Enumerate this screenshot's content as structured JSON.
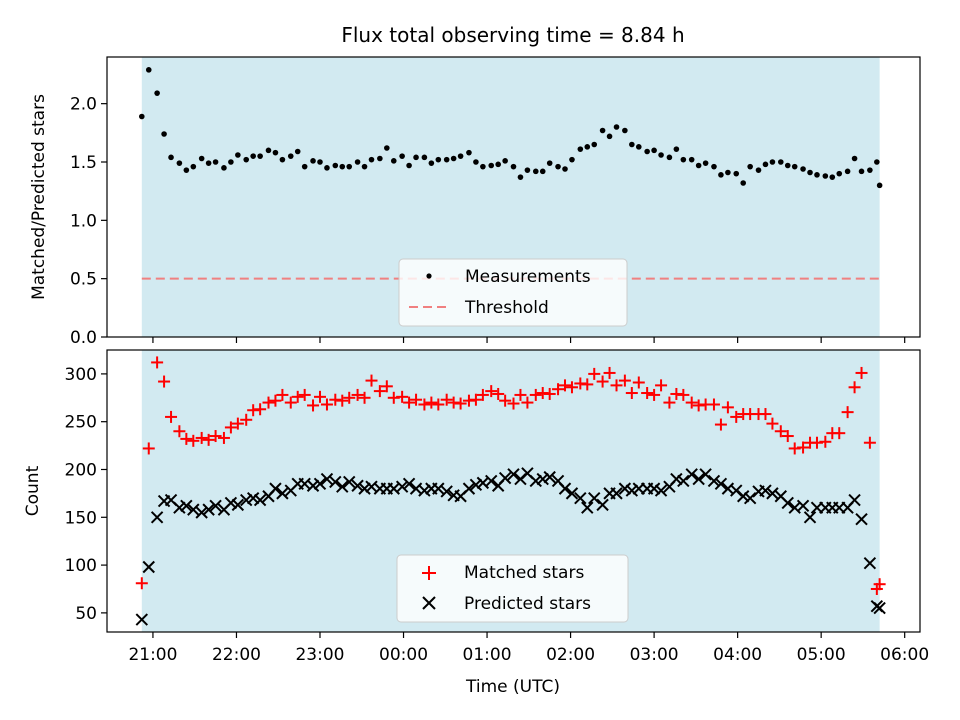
{
  "chart_data": [
    {
      "type": "scatter",
      "title": "Flux total observing time = 8.84 h",
      "ylabel": "Matched/Predicted stars",
      "xlabel": "",
      "ylim": [
        0,
        2.4
      ],
      "yticks": [
        0.0,
        0.5,
        1.0,
        1.5,
        2.0
      ],
      "ytick_labels": [
        "0.0",
        "0.5",
        "1.0",
        "1.5",
        "2.0"
      ],
      "shaded_band": {
        "from": "20:52",
        "to": "05:42",
        "color": "#add8e6"
      },
      "threshold": 0.5,
      "legend": {
        "placement": "lower-center",
        "entries": [
          "Measurements",
          "Threshold"
        ]
      },
      "series": [
        {
          "name": "Measurements",
          "color": "#000000",
          "x": [
            "20:52",
            "20:57",
            "21:03",
            "21:08",
            "21:13",
            "21:19",
            "21:24",
            "21:29",
            "21:35",
            "21:40",
            "21:45",
            "21:51",
            "21:56",
            "22:01",
            "22:07",
            "22:12",
            "22:17",
            "22:23",
            "22:28",
            "22:33",
            "22:39",
            "22:44",
            "22:49",
            "22:55",
            "23:00",
            "23:05",
            "23:11",
            "23:16",
            "23:21",
            "23:27",
            "23:32",
            "23:37",
            "23:43",
            "23:48",
            "23:53",
            "23:59",
            "00:04",
            "00:09",
            "00:15",
            "00:20",
            "00:25",
            "00:31",
            "00:36",
            "00:41",
            "00:47",
            "00:52",
            "00:57",
            "01:03",
            "01:08",
            "01:13",
            "01:19",
            "01:24",
            "01:29",
            "01:35",
            "01:40",
            "01:45",
            "01:51",
            "01:56",
            "02:01",
            "02:07",
            "02:12",
            "02:17",
            "02:23",
            "02:28",
            "02:33",
            "02:39",
            "02:44",
            "02:49",
            "02:55",
            "03:00",
            "03:05",
            "03:11",
            "03:16",
            "03:21",
            "03:27",
            "03:32",
            "03:37",
            "03:43",
            "03:48",
            "03:53",
            "03:59",
            "04:04",
            "04:09",
            "04:15",
            "04:20",
            "04:25",
            "04:31",
            "04:36",
            "04:41",
            "04:47",
            "04:52",
            "04:57",
            "05:03",
            "05:08",
            "05:13",
            "05:19",
            "05:24",
            "05:29",
            "05:35",
            "05:40",
            "05:42"
          ],
          "y": [
            1.89,
            2.29,
            2.09,
            1.74,
            1.54,
            1.49,
            1.43,
            1.46,
            1.53,
            1.49,
            1.5,
            1.45,
            1.5,
            1.56,
            1.52,
            1.55,
            1.55,
            1.6,
            1.58,
            1.52,
            1.55,
            1.59,
            1.46,
            1.51,
            1.5,
            1.45,
            1.47,
            1.46,
            1.46,
            1.5,
            1.46,
            1.52,
            1.53,
            1.62,
            1.51,
            1.55,
            1.47,
            1.54,
            1.54,
            1.49,
            1.52,
            1.52,
            1.53,
            1.55,
            1.58,
            1.5,
            1.46,
            1.47,
            1.48,
            1.51,
            1.46,
            1.37,
            1.43,
            1.42,
            1.42,
            1.49,
            1.46,
            1.44,
            1.52,
            1.61,
            1.63,
            1.65,
            1.77,
            1.72,
            1.8,
            1.77,
            1.65,
            1.63,
            1.59,
            1.6,
            1.56,
            1.54,
            1.61,
            1.52,
            1.52,
            1.47,
            1.49,
            1.46,
            1.39,
            1.41,
            1.4,
            1.32,
            1.46,
            1.43,
            1.48,
            1.5,
            1.5,
            1.47,
            1.46,
            1.44,
            1.41,
            1.39,
            1.38,
            1.37,
            1.4,
            1.42,
            1.53,
            1.42,
            1.43,
            1.5,
            1.3
          ]
        },
        {
          "name": "Threshold",
          "color": "#f08080",
          "style": "dashed",
          "x": [
            "20:52",
            "05:42"
          ],
          "y": [
            0.5,
            0.5
          ]
        }
      ]
    },
    {
      "type": "scatter",
      "title": "",
      "xlabel": "Time (UTC)",
      "ylabel": "Count",
      "ylim": [
        30,
        325
      ],
      "yticks": [
        50,
        100,
        150,
        200,
        250,
        300
      ],
      "ytick_labels": [
        "50",
        "100",
        "150",
        "200",
        "250",
        "300"
      ],
      "xlim": [
        "20:27",
        "06:11"
      ],
      "xticks": [
        "21:00",
        "22:00",
        "23:00",
        "00:00",
        "01:00",
        "02:00",
        "03:00",
        "04:00",
        "05:00",
        "06:00"
      ],
      "xtick_labels": [
        "21:00",
        "22:00",
        "23:00",
        "00:00",
        "01:00",
        "02:00",
        "03:00",
        "04:00",
        "05:00",
        "06:00"
      ],
      "shaded_band": {
        "from": "20:52",
        "to": "05:42",
        "color": "#add8e6"
      },
      "legend": {
        "placement": "lower-center",
        "entries": [
          "Matched stars",
          "Predicted stars"
        ]
      },
      "series": [
        {
          "name": "Matched stars",
          "color": "#ff0000",
          "marker": "plus",
          "x": [
            "20:52",
            "20:57",
            "21:03",
            "21:08",
            "21:13",
            "21:19",
            "21:24",
            "21:29",
            "21:35",
            "21:40",
            "21:45",
            "21:51",
            "21:56",
            "22:01",
            "22:07",
            "22:12",
            "22:17",
            "22:23",
            "22:28",
            "22:33",
            "22:39",
            "22:44",
            "22:49",
            "22:55",
            "23:00",
            "23:05",
            "23:11",
            "23:16",
            "23:21",
            "23:27",
            "23:32",
            "23:37",
            "23:43",
            "23:48",
            "23:53",
            "23:59",
            "00:04",
            "00:09",
            "00:15",
            "00:20",
            "00:25",
            "00:31",
            "00:36",
            "00:41",
            "00:47",
            "00:52",
            "00:57",
            "01:03",
            "01:08",
            "01:13",
            "01:19",
            "01:24",
            "01:29",
            "01:35",
            "01:40",
            "01:45",
            "01:51",
            "01:56",
            "02:01",
            "02:07",
            "02:12",
            "02:17",
            "02:23",
            "02:28",
            "02:33",
            "02:39",
            "02:44",
            "02:49",
            "02:55",
            "03:00",
            "03:05",
            "03:11",
            "03:16",
            "03:21",
            "03:27",
            "03:32",
            "03:37",
            "03:43",
            "03:48",
            "03:53",
            "03:59",
            "04:04",
            "04:09",
            "04:15",
            "04:20",
            "04:25",
            "04:31",
            "04:36",
            "04:41",
            "04:47",
            "04:52",
            "04:57",
            "05:03",
            "05:08",
            "05:13",
            "05:19",
            "05:24",
            "05:29",
            "05:35",
            "05:40",
            "05:42"
          ],
          "y": [
            81,
            222,
            312,
            292,
            255,
            240,
            232,
            230,
            233,
            231,
            235,
            233,
            244,
            248,
            252,
            262,
            263,
            270,
            272,
            278,
            270,
            276,
            278,
            267,
            276,
            268,
            273,
            272,
            275,
            278,
            275,
            293,
            282,
            287,
            275,
            276,
            270,
            273,
            268,
            270,
            268,
            273,
            270,
            269,
            272,
            273,
            278,
            282,
            279,
            272,
            269,
            278,
            270,
            278,
            280,
            279,
            284,
            288,
            286,
            290,
            289,
            300,
            292,
            301,
            288,
            293,
            280,
            291,
            280,
            278,
            288,
            270,
            279,
            278,
            270,
            267,
            268,
            268,
            247,
            265,
            255,
            258,
            258,
            258,
            258,
            248,
            240,
            235,
            222,
            223,
            228,
            228,
            229,
            238,
            238,
            260,
            286,
            301,
            228,
            75,
            80
          ]
        },
        {
          "name": "Predicted stars",
          "color": "#000000",
          "marker": "x",
          "x": [
            "20:52",
            "20:57",
            "21:03",
            "21:08",
            "21:13",
            "21:19",
            "21:24",
            "21:29",
            "21:35",
            "21:40",
            "21:45",
            "21:51",
            "21:56",
            "22:01",
            "22:07",
            "22:12",
            "22:17",
            "22:23",
            "22:28",
            "22:33",
            "22:39",
            "22:44",
            "22:49",
            "22:55",
            "23:00",
            "23:05",
            "23:11",
            "23:16",
            "23:21",
            "23:27",
            "23:32",
            "23:37",
            "23:43",
            "23:48",
            "23:53",
            "23:59",
            "00:04",
            "00:09",
            "00:15",
            "00:20",
            "00:25",
            "00:31",
            "00:36",
            "00:41",
            "00:47",
            "00:52",
            "00:57",
            "01:03",
            "01:08",
            "01:13",
            "01:19",
            "01:24",
            "01:29",
            "01:35",
            "01:40",
            "01:45",
            "01:51",
            "01:56",
            "02:01",
            "02:07",
            "02:12",
            "02:17",
            "02:23",
            "02:28",
            "02:33",
            "02:39",
            "02:44",
            "02:49",
            "02:55",
            "03:00",
            "03:05",
            "03:11",
            "03:16",
            "03:21",
            "03:27",
            "03:32",
            "03:37",
            "03:43",
            "03:48",
            "03:53",
            "03:59",
            "04:04",
            "04:09",
            "04:15",
            "04:20",
            "04:25",
            "04:31",
            "04:36",
            "04:41",
            "04:47",
            "04:52",
            "04:57",
            "05:03",
            "05:08",
            "05:13",
            "05:19",
            "05:24",
            "05:29",
            "05:35",
            "05:40",
            "05:42"
          ],
          "y": [
            43,
            98,
            150,
            167,
            168,
            160,
            162,
            158,
            155,
            158,
            162,
            158,
            165,
            163,
            168,
            170,
            168,
            172,
            180,
            175,
            178,
            185,
            185,
            183,
            185,
            190,
            187,
            182,
            187,
            183,
            180,
            182,
            180,
            180,
            180,
            182,
            185,
            180,
            178,
            180,
            180,
            177,
            173,
            172,
            180,
            184,
            186,
            188,
            183,
            191,
            195,
            190,
            196,
            188,
            190,
            192,
            188,
            180,
            175,
            170,
            160,
            170,
            163,
            175,
            175,
            180,
            178,
            180,
            180,
            180,
            178,
            182,
            190,
            188,
            195,
            190,
            195,
            188,
            185,
            180,
            178,
            172,
            170,
            177,
            178,
            175,
            172,
            165,
            160,
            162,
            150,
            160,
            160,
            160,
            160,
            160,
            168,
            148,
            102,
            57,
            55
          ]
        }
      ]
    }
  ]
}
